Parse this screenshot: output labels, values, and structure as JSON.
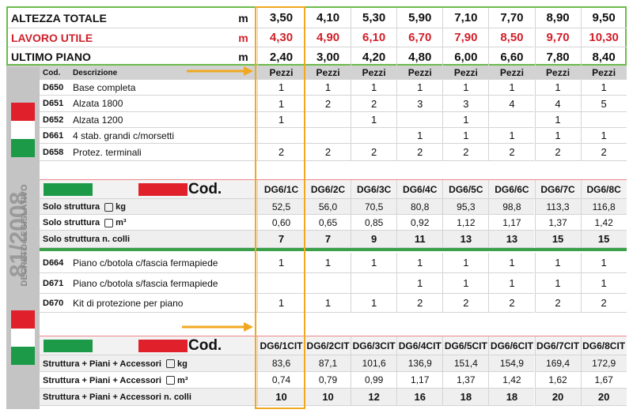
{
  "top_rows": [
    {
      "label": "ALTEZZA TOTALE",
      "unit": "m",
      "values": [
        "3,50",
        "4,10",
        "5,30",
        "5,90",
        "7,10",
        "7,70",
        "8,90",
        "9,50"
      ]
    },
    {
      "label": "LAVORO UTILE",
      "unit": "m",
      "values": [
        "4,30",
        "4,90",
        "6,10",
        "6,70",
        "7,90",
        "8,50",
        "9,70",
        "10,30"
      ]
    },
    {
      "label": "ULTIMO PIANO",
      "unit": "m",
      "values": [
        "2,40",
        "3,00",
        "4,20",
        "4,80",
        "6,00",
        "6,60",
        "7,80",
        "8,40"
      ]
    }
  ],
  "sidebar": {
    "number": "81/2008",
    "caption": "DECRETO LEGISLATIVO"
  },
  "header": {
    "cod": "Cod.",
    "descrizione": "Descrizione",
    "columns": [
      "Pezzi",
      "Pezzi",
      "Pezzi",
      "Pezzi",
      "Pezzi",
      "Pezzi",
      "Pezzi",
      "Pezzi"
    ]
  },
  "items": [
    {
      "code": "D650",
      "description": "Base completa",
      "values": [
        "1",
        "1",
        "1",
        "1",
        "1",
        "1",
        "1",
        "1"
      ]
    },
    {
      "code": "D651",
      "description": "Alzata 1800",
      "values": [
        "1",
        "2",
        "2",
        "3",
        "3",
        "4",
        "4",
        "5"
      ]
    },
    {
      "code": "D652",
      "description": "Alzata 1200",
      "values": [
        "1",
        "",
        "1",
        "",
        "1",
        "",
        "1",
        ""
      ]
    },
    {
      "code": "D661",
      "description": "4 stab. grandi c/morsetti",
      "values": [
        "",
        "",
        "",
        "1",
        "1",
        "1",
        "1",
        "1"
      ]
    },
    {
      "code": "D658",
      "description": "Protez. terminali",
      "values": [
        "2",
        "2",
        "2",
        "2",
        "2",
        "2",
        "2",
        "2"
      ]
    }
  ],
  "codes": {
    "label": "Cod.",
    "values": [
      "DG6/1C",
      "DG6/2C",
      "DG6/3C",
      "DG6/4C",
      "DG6/5C",
      "DG6/6C",
      "DG6/7C",
      "DG6/8C"
    ]
  },
  "solo": [
    {
      "label": "Solo struttura",
      "unit": "kg",
      "values": [
        "52,5",
        "56,0",
        "70,5",
        "80,8",
        "95,3",
        "98,8",
        "113,3",
        "116,8"
      ]
    },
    {
      "label": "Solo struttura",
      "unit": "m³",
      "values": [
        "0,60",
        "0,65",
        "0,85",
        "0,92",
        "1,12",
        "1,17",
        "1,37",
        "1,42"
      ]
    },
    {
      "label": "Solo struttura n. colli",
      "values": [
        "7",
        "7",
        "9",
        "11",
        "13",
        "13",
        "15",
        "15"
      ]
    }
  ],
  "items2": [
    {
      "code": "D664",
      "description": "Piano c/botola c/fascia fermapiede",
      "values": [
        "1",
        "1",
        "1",
        "1",
        "1",
        "1",
        "1",
        "1"
      ]
    },
    {
      "code": "D671",
      "description": "Piano c/botola s/fascia fermapiede",
      "values": [
        "",
        "",
        "",
        "1",
        "1",
        "1",
        "1",
        "1"
      ]
    },
    {
      "code": "D670",
      "description": "Kit di protezione per piano",
      "values": [
        "1",
        "1",
        "1",
        "2",
        "2",
        "2",
        "2",
        "2"
      ]
    }
  ],
  "codes2": {
    "label": "Cod.",
    "values": [
      "DG6/1CIT",
      "DG6/2CIT",
      "DG6/3CIT",
      "DG6/4CIT",
      "DG6/5CIT",
      "DG6/6CIT",
      "DG6/7CIT",
      "DG6/8CIT"
    ]
  },
  "totals": [
    {
      "label": "Struttura + Piani + Accessori",
      "unit": "kg",
      "values": [
        "83,6",
        "87,1",
        "101,6",
        "136,9",
        "151,4",
        "154,9",
        "169,4",
        "172,9"
      ]
    },
    {
      "label": "Struttura + Piani + Accessori",
      "unit": "m³",
      "values": [
        "0,74",
        "0,79",
        "0,99",
        "1,17",
        "1,37",
        "1,42",
        "1,62",
        "1,67"
      ]
    },
    {
      "label": "Struttura + Piani + Accessori n. colli",
      "values": [
        "10",
        "10",
        "12",
        "16",
        "18",
        "18",
        "20",
        "20"
      ]
    }
  ]
}
